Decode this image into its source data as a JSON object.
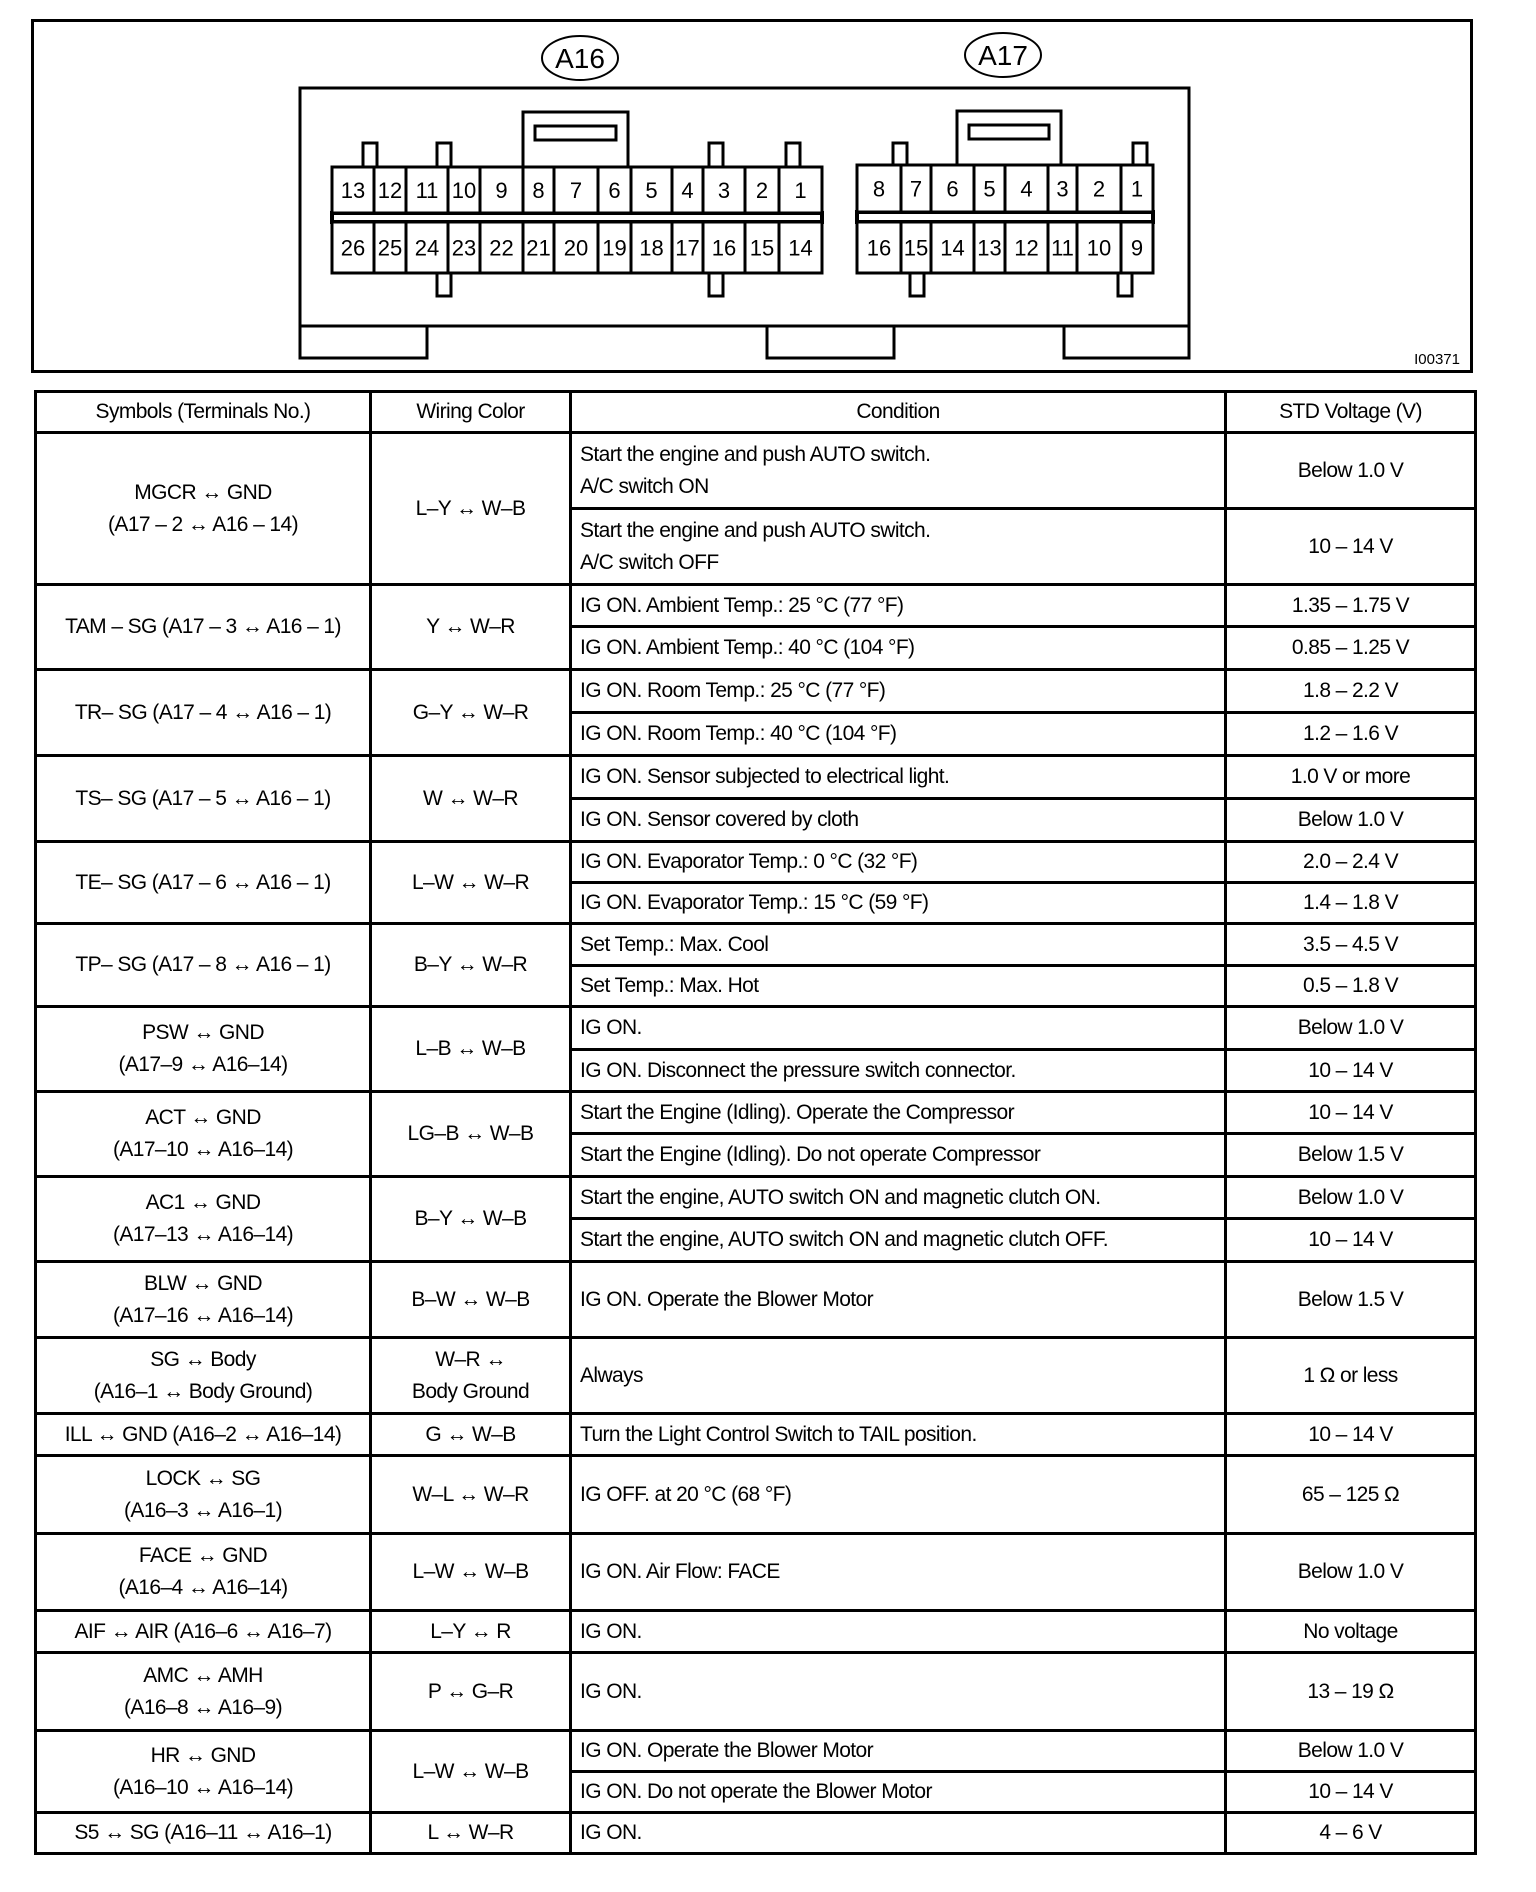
{
  "diagram": {
    "connectors": [
      {
        "label": "A16",
        "top_row": [
          "13",
          "12",
          "11",
          "10",
          "9",
          "8",
          "7",
          "6",
          "5",
          "4",
          "3",
          "2",
          "1"
        ],
        "bottom_row": [
          "26",
          "25",
          "24",
          "23",
          "22",
          "21",
          "20",
          "19",
          "18",
          "17",
          "16",
          "15",
          "14"
        ]
      },
      {
        "label": "A17",
        "top_row": [
          "8",
          "7",
          "6",
          "5",
          "4",
          "3",
          "2",
          "1"
        ],
        "bottom_row": [
          "16",
          "15",
          "14",
          "13",
          "12",
          "11",
          "10",
          "9"
        ]
      }
    ],
    "figure_id": "I00371"
  },
  "table": {
    "headers": [
      "Symbols (Terminals No.)",
      "Wiring Color",
      "Condition",
      "STD Voltage (V)"
    ],
    "rows": [
      {
        "symbol": [
          "MGCR ↔ GND",
          "(A17 – 2 ↔ A16 – 14)"
        ],
        "wiring": [
          "L–Y ↔ W–B"
        ],
        "conditions": [
          {
            "text": [
              "Start the engine and push AUTO switch.",
              "A/C switch ON"
            ],
            "value": "Below 1.0 V"
          },
          {
            "text": [
              "Start the engine and push AUTO switch.",
              "A/C switch OFF"
            ],
            "value": "10 – 14 V"
          }
        ]
      },
      {
        "symbol": [
          "TAM – SG (A17 – 3 ↔ A16 – 1)"
        ],
        "wiring": [
          "Y ↔ W–R"
        ],
        "conditions": [
          {
            "text": [
              "IG ON. Ambient Temp.: 25 °C (77 °F)"
            ],
            "value": "1.35 – 1.75 V"
          },
          {
            "text": [
              "IG ON. Ambient Temp.: 40 °C (104 °F)"
            ],
            "value": "0.85 – 1.25 V"
          }
        ]
      },
      {
        "symbol": [
          "TR– SG (A17 – 4 ↔ A16 – 1)"
        ],
        "wiring": [
          "G–Y ↔ W–R"
        ],
        "conditions": [
          {
            "text": [
              "IG ON. Room Temp.: 25 °C (77 °F)"
            ],
            "value": "1.8 – 2.2 V"
          },
          {
            "text": [
              "IG ON. Room Temp.: 40 °C (104 °F)"
            ],
            "value": "1.2 – 1.6 V"
          }
        ]
      },
      {
        "symbol": [
          "TS– SG (A17 – 5 ↔ A16 – 1)"
        ],
        "wiring": [
          "W ↔ W–R"
        ],
        "conditions": [
          {
            "text": [
              "IG ON. Sensor subjected to electrical light."
            ],
            "value": "1.0 V or more"
          },
          {
            "text": [
              "IG ON. Sensor covered by cloth"
            ],
            "value": "Below 1.0 V"
          }
        ]
      },
      {
        "symbol": [
          "TE– SG (A17 – 6 ↔ A16 – 1)"
        ],
        "wiring": [
          "L–W ↔ W–R"
        ],
        "conditions": [
          {
            "text": [
              "IG ON. Evaporator Temp.: 0 °C (32 °F)"
            ],
            "value": "2.0 – 2.4 V"
          },
          {
            "text": [
              "IG ON. Evaporator Temp.: 15 °C (59 °F)"
            ],
            "value": "1.4 – 1.8 V"
          }
        ]
      },
      {
        "symbol": [
          "TP– SG (A17 – 8 ↔ A16 – 1)"
        ],
        "wiring": [
          "B–Y ↔ W–R"
        ],
        "conditions": [
          {
            "text": [
              "Set Temp.: Max. Cool"
            ],
            "value": "3.5 – 4.5 V"
          },
          {
            "text": [
              "Set Temp.: Max. Hot"
            ],
            "value": "0.5 – 1.8 V"
          }
        ]
      },
      {
        "symbol": [
          "PSW ↔ GND",
          "(A17–9 ↔ A16–14)"
        ],
        "wiring": [
          "L–B ↔ W–B"
        ],
        "conditions": [
          {
            "text": [
              "IG ON."
            ],
            "value": "Below 1.0 V"
          },
          {
            "text": [
              "IG ON. Disconnect the pressure switch connector."
            ],
            "value": "10 – 14 V"
          }
        ]
      },
      {
        "symbol": [
          "ACT ↔ GND",
          "(A17–10 ↔ A16–14)"
        ],
        "wiring": [
          "LG–B ↔ W–B"
        ],
        "conditions": [
          {
            "text": [
              "Start the Engine (Idling). Operate the Compressor"
            ],
            "value": "10 – 14 V"
          },
          {
            "text": [
              "Start the Engine (Idling). Do not operate Compressor"
            ],
            "value": "Below 1.5 V"
          }
        ]
      },
      {
        "symbol": [
          "AC1 ↔ GND",
          "(A17–13 ↔ A16–14)"
        ],
        "wiring": [
          "B–Y ↔ W–B"
        ],
        "conditions": [
          {
            "text": [
              "Start the engine, AUTO switch ON and magnetic clutch ON."
            ],
            "value": "Below 1.0 V"
          },
          {
            "text": [
              "Start the engine, AUTO switch ON and magnetic clutch OFF."
            ],
            "value": "10 – 14 V"
          }
        ]
      },
      {
        "symbol": [
          "BLW ↔ GND",
          "(A17–16 ↔ A16–14)"
        ],
        "wiring": [
          "B–W ↔ W–B"
        ],
        "conditions": [
          {
            "text": [
              "IG ON. Operate the Blower Motor"
            ],
            "value": "Below 1.5 V"
          }
        ]
      },
      {
        "symbol": [
          "SG ↔ Body",
          "(A16–1 ↔ Body Ground)"
        ],
        "wiring": [
          "W–R ↔",
          "Body Ground"
        ],
        "conditions": [
          {
            "text": [
              "Always"
            ],
            "value": "1 Ω or less"
          }
        ]
      },
      {
        "symbol": [
          "ILL ↔ GND (A16–2 ↔ A16–14)"
        ],
        "wiring": [
          "G ↔ W–B"
        ],
        "conditions": [
          {
            "text": [
              "Turn the Light Control Switch to TAIL position."
            ],
            "value": "10 – 14 V"
          }
        ]
      },
      {
        "symbol": [
          "LOCK ↔ SG",
          "(A16–3 ↔ A16–1)"
        ],
        "wiring": [
          "W–L ↔ W–R"
        ],
        "conditions": [
          {
            "text": [
              "IG OFF. at 20 °C (68 °F)"
            ],
            "value": "65 – 125 Ω"
          }
        ]
      },
      {
        "symbol": [
          "FACE ↔ GND",
          "(A16–4 ↔ A16–14)"
        ],
        "wiring": [
          "L–W ↔ W–B"
        ],
        "conditions": [
          {
            "text": [
              "IG ON. Air Flow: FACE"
            ],
            "value": "Below 1.0 V"
          }
        ]
      },
      {
        "symbol": [
          "AIF ↔ AIR (A16–6 ↔ A16–7)"
        ],
        "wiring": [
          "L–Y ↔ R"
        ],
        "conditions": [
          {
            "text": [
              "IG ON."
            ],
            "value": "No voltage"
          }
        ]
      },
      {
        "symbol": [
          "AMC ↔ AMH",
          "(A16–8 ↔ A16–9)"
        ],
        "wiring": [
          "P ↔ G–R"
        ],
        "conditions": [
          {
            "text": [
              "IG ON."
            ],
            "value": "13 – 19 Ω"
          }
        ]
      },
      {
        "symbol": [
          "HR ↔ GND",
          "(A16–10 ↔ A16–14)"
        ],
        "wiring": [
          "L–W ↔ W–B"
        ],
        "conditions": [
          {
            "text": [
              "IG ON. Operate the Blower Motor"
            ],
            "value": "Below 1.0 V"
          },
          {
            "text": [
              "IG ON. Do not operate the Blower Motor"
            ],
            "value": "10 – 14 V"
          }
        ]
      },
      {
        "symbol": [
          "S5 ↔ SG (A16–11 ↔ A16–1)"
        ],
        "wiring": [
          "L ↔ W–R"
        ],
        "conditions": [
          {
            "text": [
              "IG ON."
            ],
            "value": "4 – 6 V"
          }
        ]
      }
    ]
  }
}
